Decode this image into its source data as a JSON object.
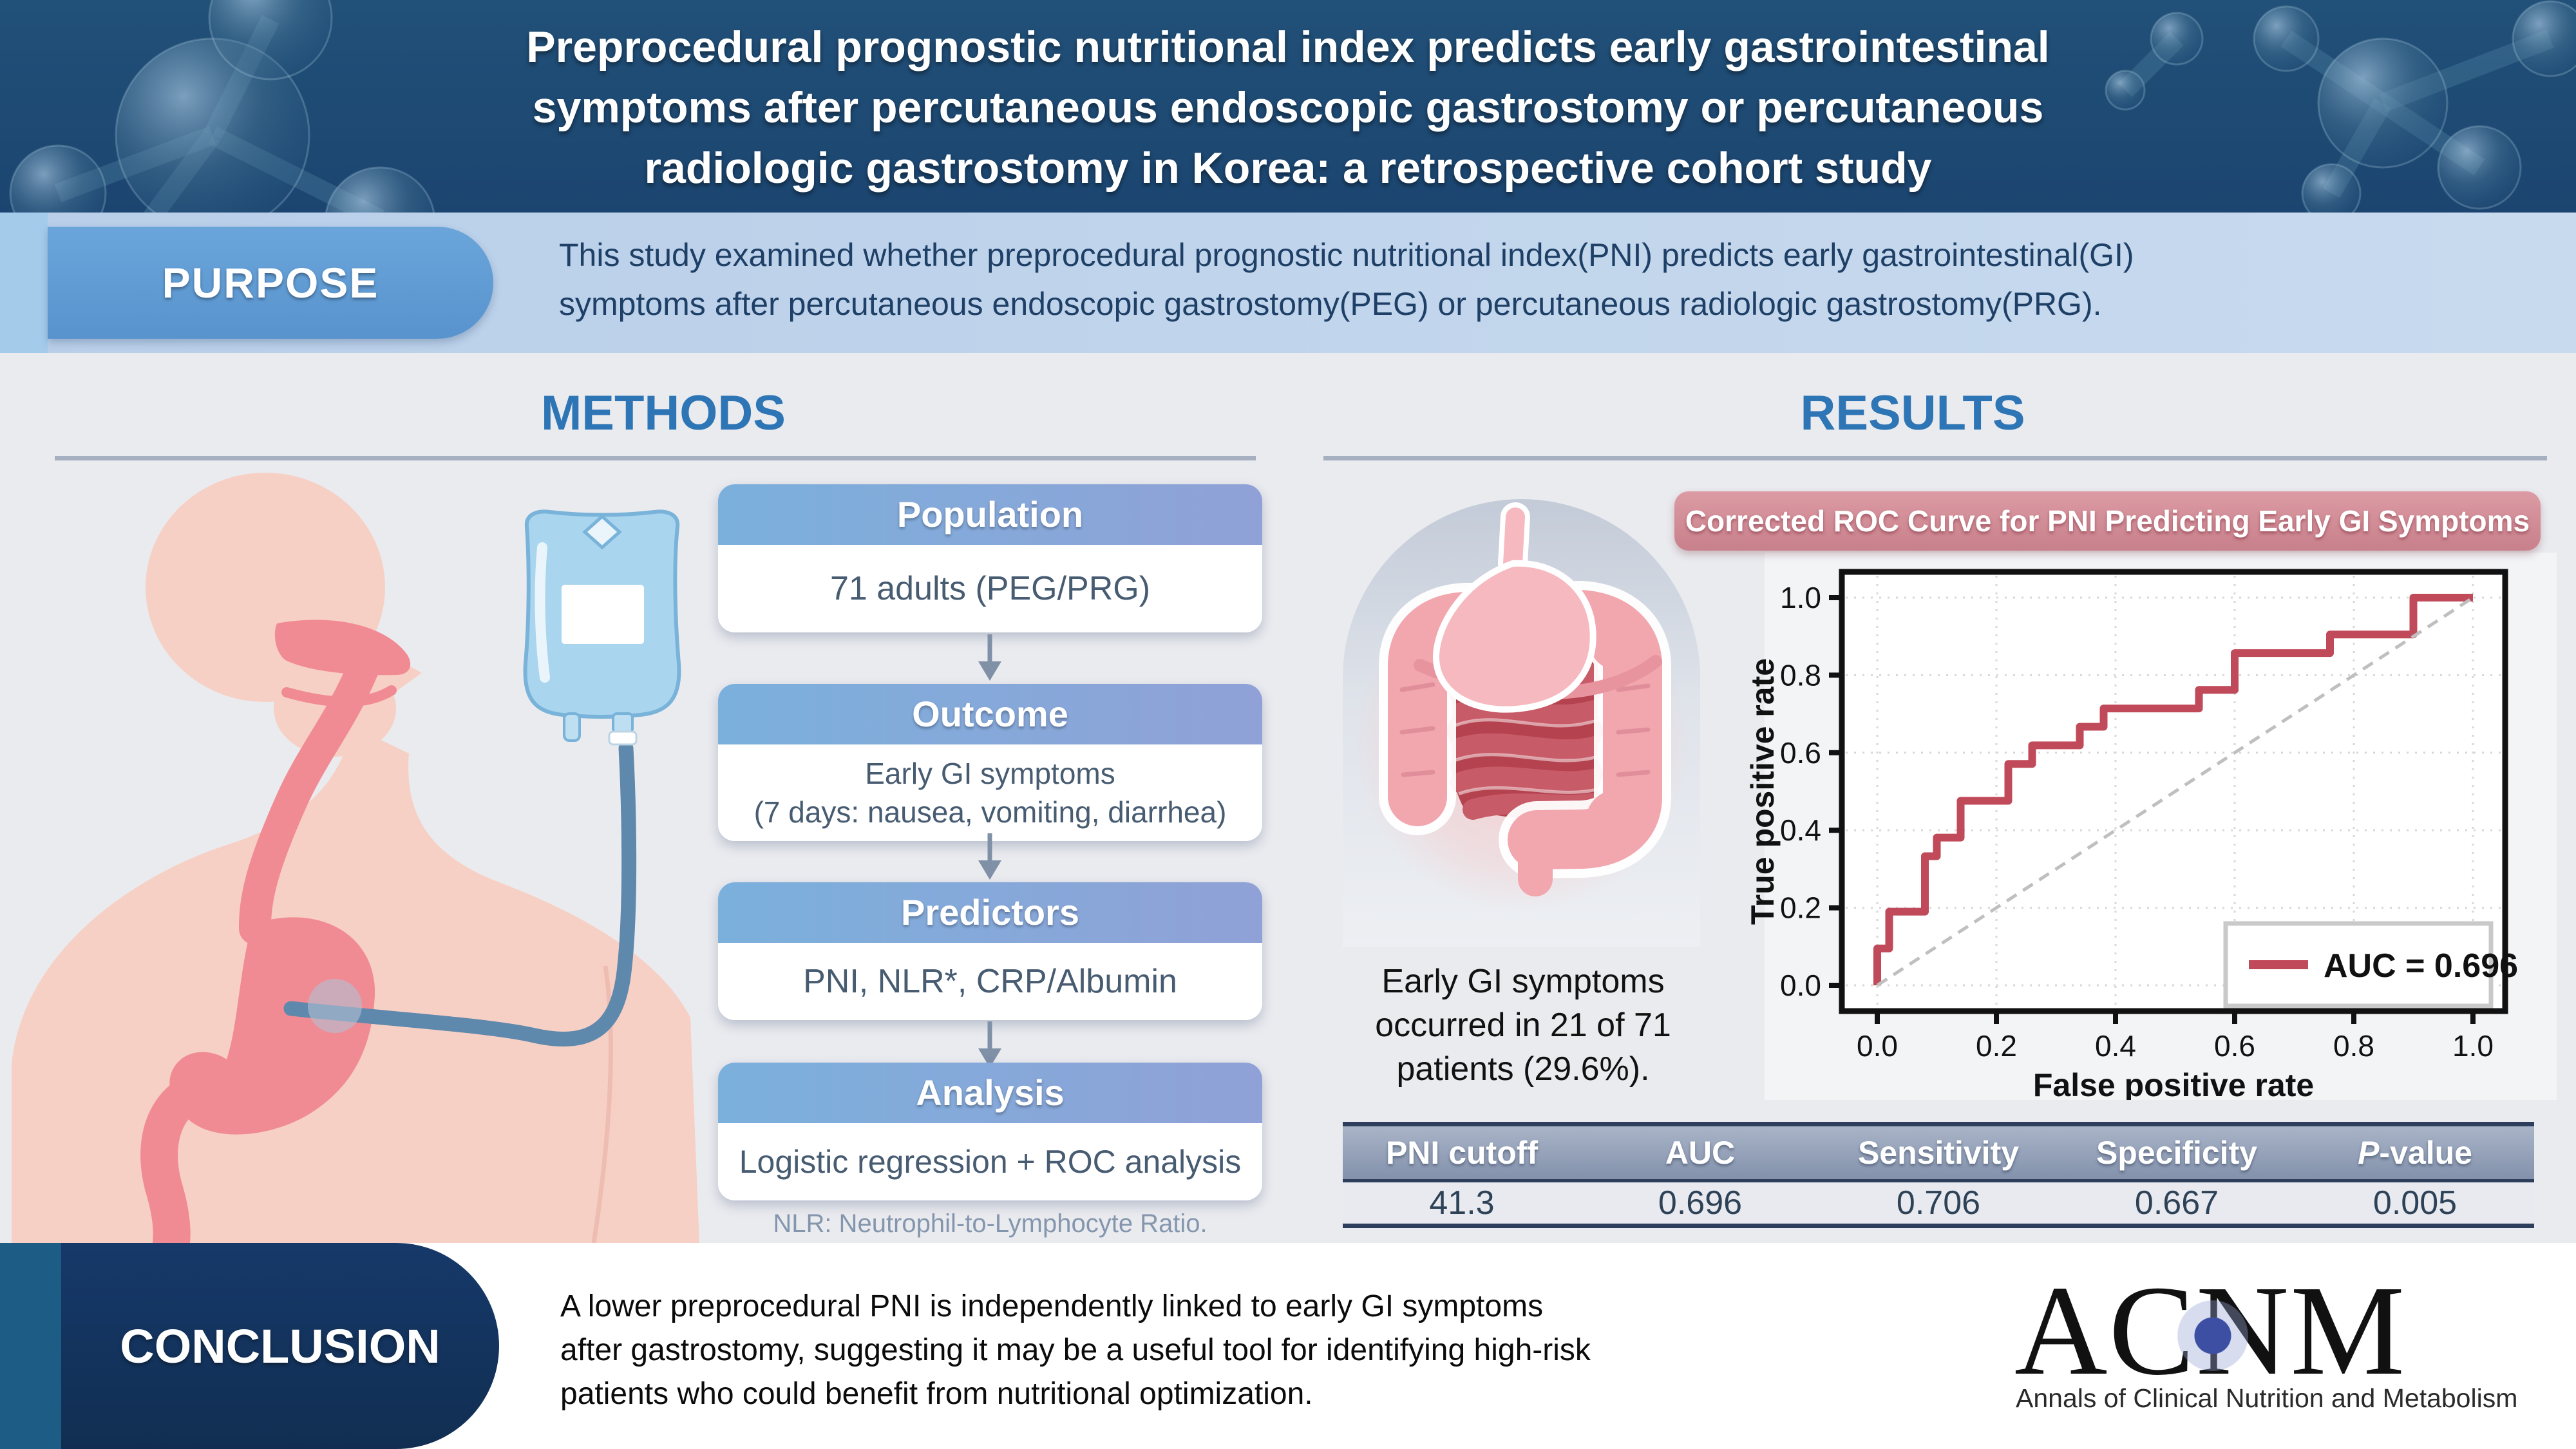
{
  "banner": {
    "title": "Preprocedural prognostic nutritional index predicts early gastrointestinal\nsymptoms after percutaneous endoscopic gastrostomy or percutaneous\nradiologic gastrostomy in Korea: a retrospective cohort study"
  },
  "purpose": {
    "label": "PURPOSE",
    "text": "This study examined whether preprocedural prognostic nutritional index(PNI) predicts early gastrointestinal(GI)\nsymptoms after percutaneous endoscopic gastrostomy(PEG) or percutaneous radiologic gastrostomy(PRG)."
  },
  "methods": {
    "heading": "METHODS",
    "flow": [
      {
        "header": "Population",
        "body": "71 adults (PEG/PRG)"
      },
      {
        "header": "Outcome",
        "body": "Early GI symptoms\n(7 days: nausea, vomiting, diarrhea)"
      },
      {
        "header": "Predictors",
        "body": "PNI, NLR*, CRP/Albumin"
      },
      {
        "header": "Analysis",
        "body": "Logistic regression + ROC analysis"
      }
    ],
    "footnote": "NLR: Neutrophil-to-Lymphocyte Ratio."
  },
  "results": {
    "heading": "RESULTS",
    "chart_banner": "Corrected ROC Curve for PNI Predicting Early GI Symptoms",
    "note": "Early GI symptoms\noccurred in 21 of 71\npatients (29.6%).",
    "table": {
      "headers": [
        "PNI cutoff",
        "AUC",
        "Sensitivity",
        "Specificity",
        "P-value"
      ],
      "row": [
        "41.3",
        "0.696",
        "0.706",
        "0.667",
        "0.005"
      ]
    }
  },
  "conclusion": {
    "label": "CONCLUSION",
    "text": "A lower preprocedural PNI is independently linked to early GI symptoms\nafter gastrostomy, suggesting it may be a useful tool for identifying high-risk\npatients who could benefit from nutritional optimization."
  },
  "logo": {
    "acronym": "ACNM",
    "name": "Annals of Clinical Nutrition and Metabolism"
  },
  "colors": {
    "banner_navy": "#1e4b74",
    "section_blue": "#2e75b6",
    "flow_header_blue": "#7bb0dc",
    "roc_banner_pink": "#c8808b",
    "roc_red": "#c04a59",
    "conclusion_navy": "#143560",
    "logo_dot_blue": "#3c4fa3"
  },
  "chart_data": {
    "type": "line",
    "title": "Corrected ROC Curve for PNI Predicting Early GI Symptoms",
    "xlabel": "False positive rate",
    "ylabel": "True positive rate",
    "xlim": [
      0,
      1
    ],
    "ylim": [
      0,
      1
    ],
    "xticks": [
      0.0,
      0.2,
      0.4,
      0.6,
      0.8,
      1.0
    ],
    "yticks": [
      0.0,
      0.2,
      0.4,
      0.6,
      0.8,
      1.0
    ],
    "grid": true,
    "legend": {
      "position": "lower right",
      "entries": [
        {
          "label": "AUC = 0.696",
          "color": "#c04a59"
        }
      ]
    },
    "series": [
      {
        "name": "ROC curve",
        "color": "#c04a59",
        "style": "solid",
        "x": [
          0,
          0,
          0.02,
          0.02,
          0.08,
          0.08,
          0.1,
          0.1,
          0.14,
          0.14,
          0.22,
          0.22,
          0.26,
          0.26,
          0.34,
          0.34,
          0.38,
          0.38,
          0.54,
          0.54,
          0.6,
          0.6,
          0.76,
          0.76,
          0.9,
          0.9,
          1.0
        ],
        "y": [
          0,
          0.095,
          0.095,
          0.19,
          0.19,
          0.333,
          0.333,
          0.381,
          0.381,
          0.476,
          0.476,
          0.571,
          0.571,
          0.619,
          0.619,
          0.667,
          0.667,
          0.714,
          0.714,
          0.762,
          0.762,
          0.857,
          0.857,
          0.905,
          0.905,
          1.0,
          1.0
        ]
      },
      {
        "name": "Chance line",
        "color": "#bfbfbf",
        "style": "dashed",
        "x": [
          0,
          1
        ],
        "y": [
          0,
          1
        ]
      }
    ],
    "auc": 0.696
  }
}
